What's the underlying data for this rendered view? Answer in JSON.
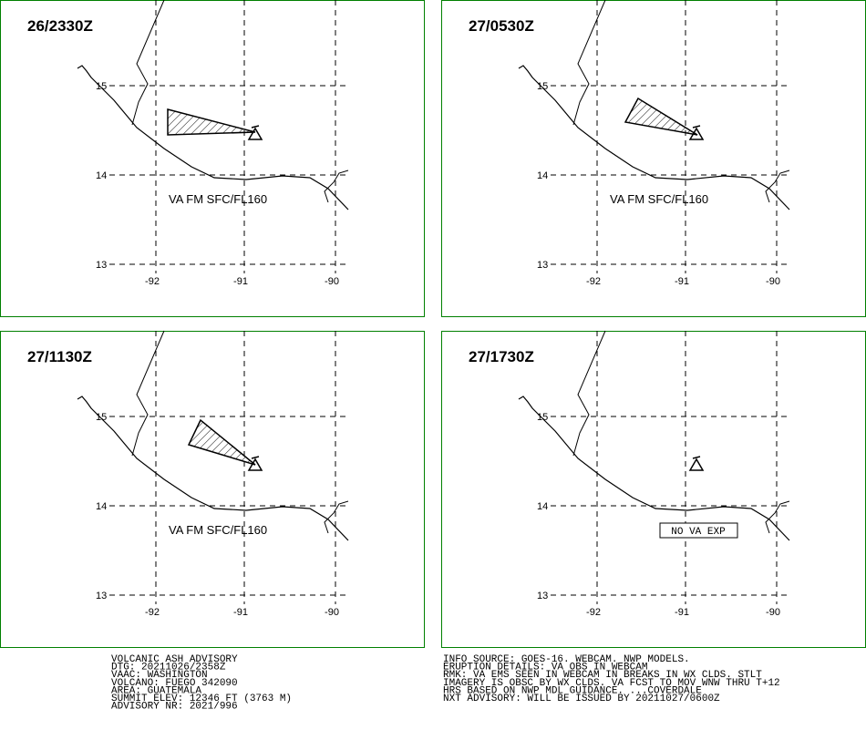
{
  "panels": [
    {
      "time": "26/2330Z",
      "label": "VA FM SFC/FL160"
    },
    {
      "time": "27/0530Z",
      "label": "VA FM SFC/FL160"
    },
    {
      "time": "27/1130Z",
      "label": "VA FM SFC/FL160"
    },
    {
      "time": "27/1730Z",
      "label": "NO VA EXP"
    }
  ],
  "lat_labels": [
    "15",
    "14",
    "13"
  ],
  "lon_labels": [
    "-92",
    "-91",
    "-90"
  ],
  "advisory_left": [
    "VOLCANIC ASH ADVISORY",
    "DTG: 20211026/2358Z",
    "VAAC: WASHINGTON",
    "VOLCANO: FUEGO 342090",
    "AREA: GUATEMALA",
    "SUMMIT ELEV: 12346 FT (3763 M)",
    "ADVISORY NR: 2021/996"
  ],
  "advisory_right": [
    "INFO SOURCE: GOES-16. WEBCAM. NWP MODELS.",
    "ERUPTION DETAILS: VA OBS IN WEBCAM",
    "RMK: VA EMS SEEN IN WEBCAM IN BREAKS IN WX CLDS. STLT",
    "IMAGERY IS OBSC BY WX CLDS. VA FCST TO MOV WNW THRU T+12",
    "HRS BASED ON NWP MDL GUIDANCE. ...COVERDALE",
    "NXT ADVISORY: WILL BE ISSUED BY 20211027/0600Z"
  ]
}
